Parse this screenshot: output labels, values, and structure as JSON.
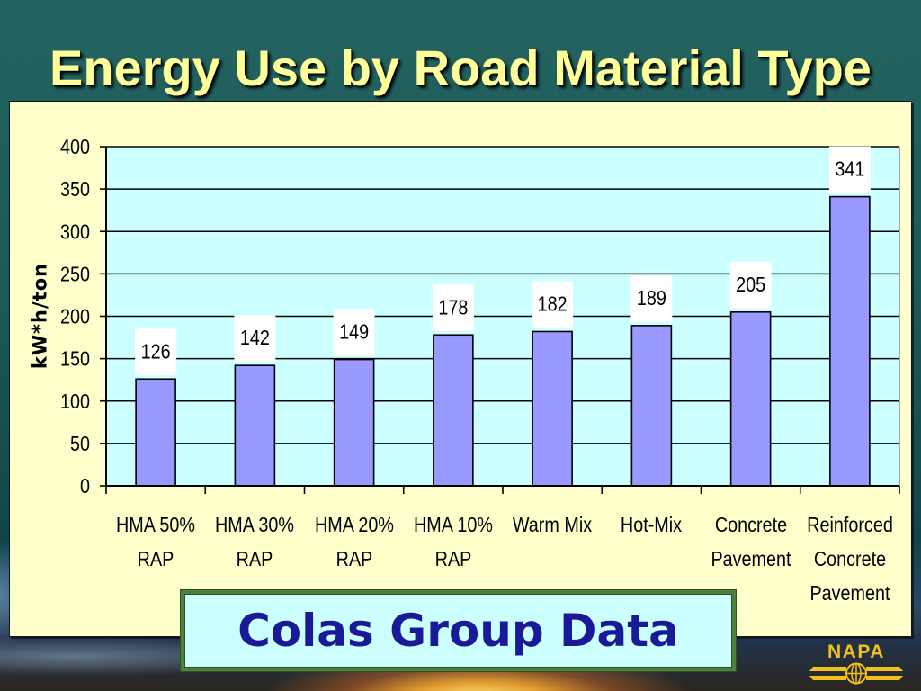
{
  "colors": {
    "title": "#FFFF99",
    "panel": "#FFFFCC",
    "plot_area": "#CCFFFF",
    "bar": "#9999FF",
    "source_box": "#CCFFFF",
    "source_border": "#4E7F3C",
    "source_text": "#1A1A99",
    "logo": "#F2C21A"
  },
  "logo": {
    "text": "NAPA"
  },
  "chart_data": {
    "type": "bar",
    "title": "Energy Use by Road Material Type",
    "ylabel": "kW*h/ton",
    "categories": [
      "HMA 50%\nRAP",
      "HMA 30%\nRAP",
      "HMA 20%\nRAP",
      "HMA 10%\nRAP",
      "Warm Mix",
      "Hot-Mix",
      "Concrete\nPavement",
      "Reinforced\nConcrete\nPavement"
    ],
    "values": [
      126,
      142,
      149,
      178,
      182,
      189,
      205,
      341
    ],
    "data_labels": true,
    "ylim": [
      0,
      400
    ],
    "yticks": [
      0,
      50,
      100,
      150,
      200,
      250,
      300,
      350,
      400
    ],
    "grid": true,
    "legend": "none",
    "annotations": [
      "Colas Group Data"
    ]
  }
}
